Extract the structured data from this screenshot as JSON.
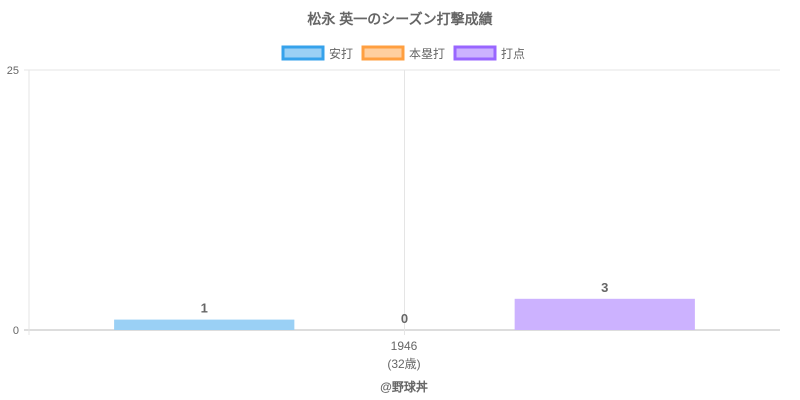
{
  "chart_data": {
    "type": "bar",
    "title": "松永 英一のシーズン打撃成績",
    "categories": [
      "1946"
    ],
    "category_sublabels": [
      "(32歳)"
    ],
    "series": [
      {
        "name": "安打",
        "values": [
          1
        ],
        "color": "#9ad0f5",
        "border": "#36a2eb"
      },
      {
        "name": "本塁打",
        "values": [
          0
        ],
        "color": "#ffcf9f",
        "border": "#ff9f40"
      },
      {
        "name": "打点",
        "values": [
          3
        ],
        "color": "#ccb2ff",
        "border": "#9966ff"
      }
    ],
    "ylim": [
      0,
      25
    ],
    "yticks": [
      "0",
      "25"
    ],
    "grid": true,
    "legend": "top",
    "data_labels": true,
    "credit": "@野球丼"
  }
}
